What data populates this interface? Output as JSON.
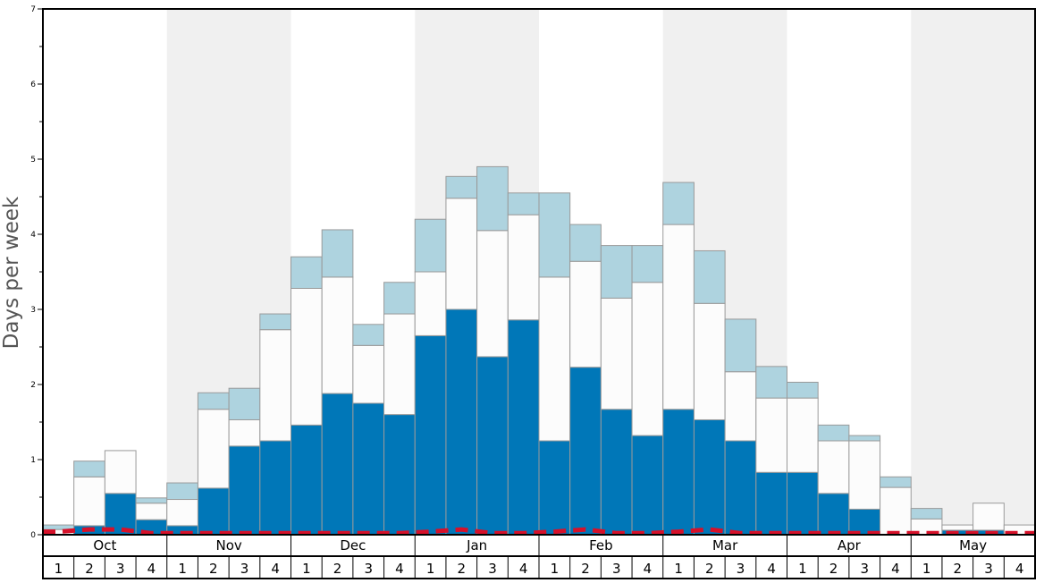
{
  "chart_data": {
    "type": "bar",
    "stacked": true,
    "ylabel": "Days per week",
    "ylim": [
      0,
      7
    ],
    "y_ticks": [
      "0",
      "1",
      "2",
      "3",
      "4",
      "5",
      "6",
      "7"
    ],
    "months": [
      "Oct",
      "Nov",
      "Dec",
      "Jan",
      "Feb",
      "Mar",
      "Apr",
      "May"
    ],
    "week_labels": [
      "1",
      "2",
      "3",
      "4"
    ],
    "categories": [
      "Oct 1",
      "Oct 2",
      "Oct 3",
      "Oct 4",
      "Nov 1",
      "Nov 2",
      "Nov 3",
      "Nov 4",
      "Dec 1",
      "Dec 2",
      "Dec 3",
      "Dec 4",
      "Jan 1",
      "Jan 2",
      "Jan 3",
      "Jan 4",
      "Feb 1",
      "Feb 2",
      "Feb 3",
      "Feb 4",
      "Mar 1",
      "Mar 2",
      "Mar 3",
      "Mar 4",
      "Apr 1",
      "Apr 2",
      "Apr 3",
      "Apr 4",
      "May 1",
      "May 2",
      "May 3",
      "May 4"
    ],
    "series": [
      {
        "color": "#0077b8",
        "values": [
          0.0,
          0.12,
          0.55,
          0.2,
          0.12,
          0.62,
          1.18,
          1.25,
          1.46,
          1.88,
          1.75,
          1.6,
          2.65,
          3.0,
          2.37,
          2.86,
          1.25,
          2.23,
          1.67,
          1.32,
          1.67,
          1.53,
          1.25,
          0.83,
          0.83,
          0.55,
          0.34,
          0.0,
          0.0,
          0.06,
          0.06,
          0.0
        ]
      },
      {
        "color": "#fcfcfc",
        "values": [
          0.07,
          0.65,
          0.57,
          0.22,
          0.35,
          1.05,
          0.35,
          1.48,
          1.82,
          1.55,
          0.77,
          1.34,
          0.85,
          1.48,
          1.68,
          1.4,
          2.18,
          1.41,
          1.48,
          2.04,
          2.46,
          1.55,
          0.92,
          0.99,
          0.99,
          0.7,
          0.91,
          0.63,
          0.21,
          0.07,
          0.36,
          0.13
        ]
      },
      {
        "color": "#aed3df",
        "values": [
          0.06,
          0.21,
          0.0,
          0.07,
          0.22,
          0.22,
          0.42,
          0.21,
          0.42,
          0.63,
          0.28,
          0.42,
          0.7,
          0.29,
          0.85,
          0.29,
          1.12,
          0.49,
          0.7,
          0.49,
          0.56,
          0.7,
          0.7,
          0.42,
          0.21,
          0.21,
          0.07,
          0.14,
          0.14,
          0.0,
          0.0,
          0.0
        ]
      }
    ],
    "reference_line": {
      "color": "#d6112a",
      "values": [
        0.04,
        0.07,
        0.07,
        0.02,
        0.02,
        0.02,
        0.02,
        0.02,
        0.02,
        0.02,
        0.02,
        0.02,
        0.04,
        0.07,
        0.02,
        0.02,
        0.04,
        0.07,
        0.02,
        0.02,
        0.04,
        0.07,
        0.02,
        0.02,
        0.02,
        0.02,
        0.02,
        0.02,
        0.02,
        0.02,
        0.02,
        0.02
      ]
    },
    "band_colors": [
      "#ffffff",
      "#f0f0f0"
    ],
    "grid": false
  }
}
